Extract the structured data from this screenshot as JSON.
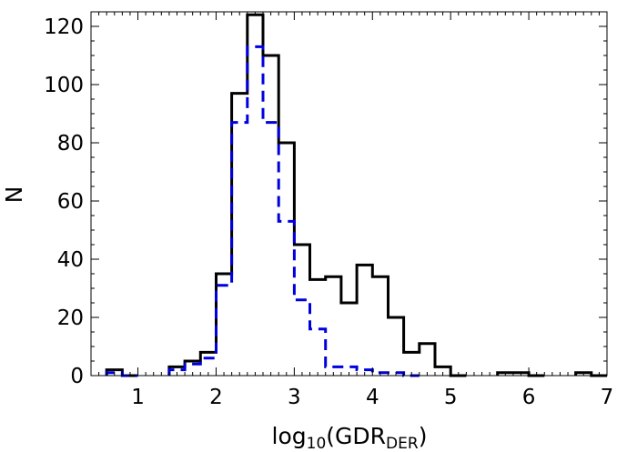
{
  "chart_data": {
    "type": "histogram",
    "xlabel": {
      "main": "log",
      "sub1": "10",
      "open": "(GDR",
      "sub2": "DER",
      "close": ")"
    },
    "ylabel": "N",
    "xlim": [
      0.4,
      7.0
    ],
    "ylim": [
      0,
      125
    ],
    "xticks": [
      1,
      2,
      3,
      4,
      5,
      6,
      7
    ],
    "yticks": [
      0,
      20,
      40,
      60,
      80,
      100,
      120
    ],
    "bin_width": 0.2,
    "grid": false,
    "series": [
      {
        "style": "solid",
        "color": "#000000",
        "bins": [
          [
            0.6,
            2
          ],
          [
            0.8,
            0
          ],
          [
            1.4,
            3
          ],
          [
            1.6,
            5
          ],
          [
            1.8,
            8
          ],
          [
            2.0,
            35
          ],
          [
            2.2,
            97
          ],
          [
            2.4,
            124
          ],
          [
            2.6,
            110
          ],
          [
            2.8,
            80
          ],
          [
            3.0,
            45
          ],
          [
            3.2,
            33
          ],
          [
            3.4,
            34
          ],
          [
            3.6,
            25
          ],
          [
            3.8,
            38
          ],
          [
            4.0,
            34
          ],
          [
            4.2,
            20
          ],
          [
            4.4,
            8
          ],
          [
            4.6,
            11
          ],
          [
            4.8,
            3
          ],
          [
            5.0,
            0
          ],
          [
            5.6,
            1
          ],
          [
            5.8,
            1
          ],
          [
            6.0,
            0
          ],
          [
            6.6,
            1
          ],
          [
            6.8,
            0
          ]
        ]
      },
      {
        "style": "dashed",
        "color": "#0000dd",
        "bins": [
          [
            0.6,
            1
          ],
          [
            0.8,
            0
          ],
          [
            1.4,
            2
          ],
          [
            1.6,
            4
          ],
          [
            1.8,
            6
          ],
          [
            2.0,
            31
          ],
          [
            2.2,
            87
          ],
          [
            2.4,
            113
          ],
          [
            2.6,
            87
          ],
          [
            2.8,
            53
          ],
          [
            3.0,
            26
          ],
          [
            3.2,
            16
          ],
          [
            3.4,
            3
          ],
          [
            3.6,
            3
          ],
          [
            3.8,
            2
          ],
          [
            4.0,
            1
          ],
          [
            4.2,
            1
          ],
          [
            4.4,
            0
          ]
        ]
      }
    ]
  }
}
